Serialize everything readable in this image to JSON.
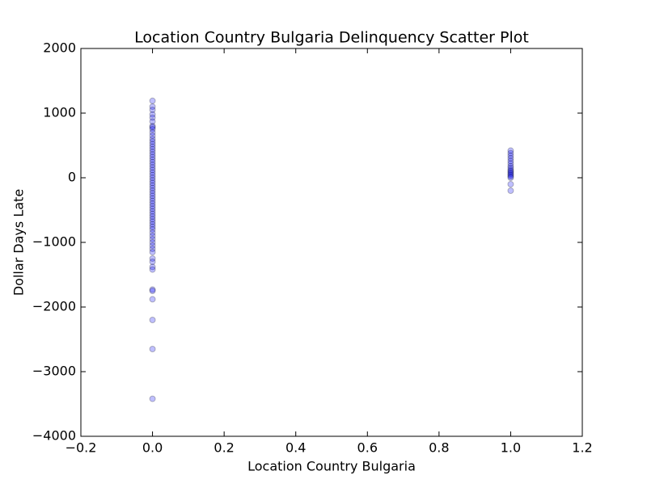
{
  "chart_data": {
    "type": "scatter",
    "title": "Location Country Bulgaria Delinquency Scatter Plot",
    "x_label": "Location Country Bulgaria",
    "y_label": "Dollar Days Late",
    "color": "#0000ff",
    "alpha": 0.25,
    "xlim": [
      -0.2,
      1.2
    ],
    "ylim": [
      -4000,
      2000
    ],
    "xticks": [
      {
        "value": -0.2,
        "label": "−0.2"
      },
      {
        "value": 0,
        "label": "0.0"
      },
      0.2,
      0.4,
      0.6,
      0.8,
      {
        "value": 1,
        "label": "1.0"
      },
      1.2
    ],
    "yticks": [
      {
        "value": -4000,
        "label": "−4000"
      },
      {
        "value": -3000,
        "label": "−3000"
      },
      {
        "value": -2000,
        "label": "−2000"
      },
      {
        "value": -1000,
        "label": "−1000"
      },
      0,
      1000,
      2000
    ],
    "x": [
      0,
      0,
      0,
      0,
      0,
      0,
      0,
      0,
      0,
      0,
      0,
      0,
      0,
      0,
      0,
      0,
      0,
      0,
      0,
      0,
      0,
      0,
      0,
      0,
      0,
      0,
      0,
      0,
      0,
      0,
      0,
      0,
      0,
      0,
      0,
      0,
      0,
      0,
      0,
      0,
      0,
      0,
      0,
      0,
      0,
      0,
      0,
      0,
      0,
      0,
      0,
      0,
      0,
      0,
      0,
      0,
      0,
      0,
      0,
      0,
      0,
      0,
      0,
      0,
      1,
      1,
      1,
      1,
      1,
      1,
      1,
      1,
      1,
      1,
      1,
      1,
      1,
      1,
      1,
      1,
      1
    ],
    "y": [
      1190,
      1100,
      1050,
      980,
      930,
      870,
      800,
      780,
      750,
      700,
      650,
      600,
      560,
      520,
      480,
      440,
      400,
      360,
      320,
      280,
      240,
      200,
      160,
      120,
      80,
      40,
      0,
      -40,
      -80,
      -120,
      -160,
      -200,
      -240,
      -280,
      -320,
      -360,
      -400,
      -440,
      -480,
      -520,
      -560,
      -600,
      -640,
      -680,
      -720,
      -760,
      -800,
      -850,
      -900,
      -950,
      -1000,
      -1050,
      -1100,
      -1150,
      -1250,
      -1300,
      -1380,
      -1420,
      -1730,
      -1750,
      -1880,
      -2200,
      -2650,
      -3420,
      420,
      380,
      340,
      300,
      260,
      220,
      180,
      150,
      120,
      100,
      80,
      60,
      40,
      20,
      0,
      -100,
      -200
    ]
  }
}
